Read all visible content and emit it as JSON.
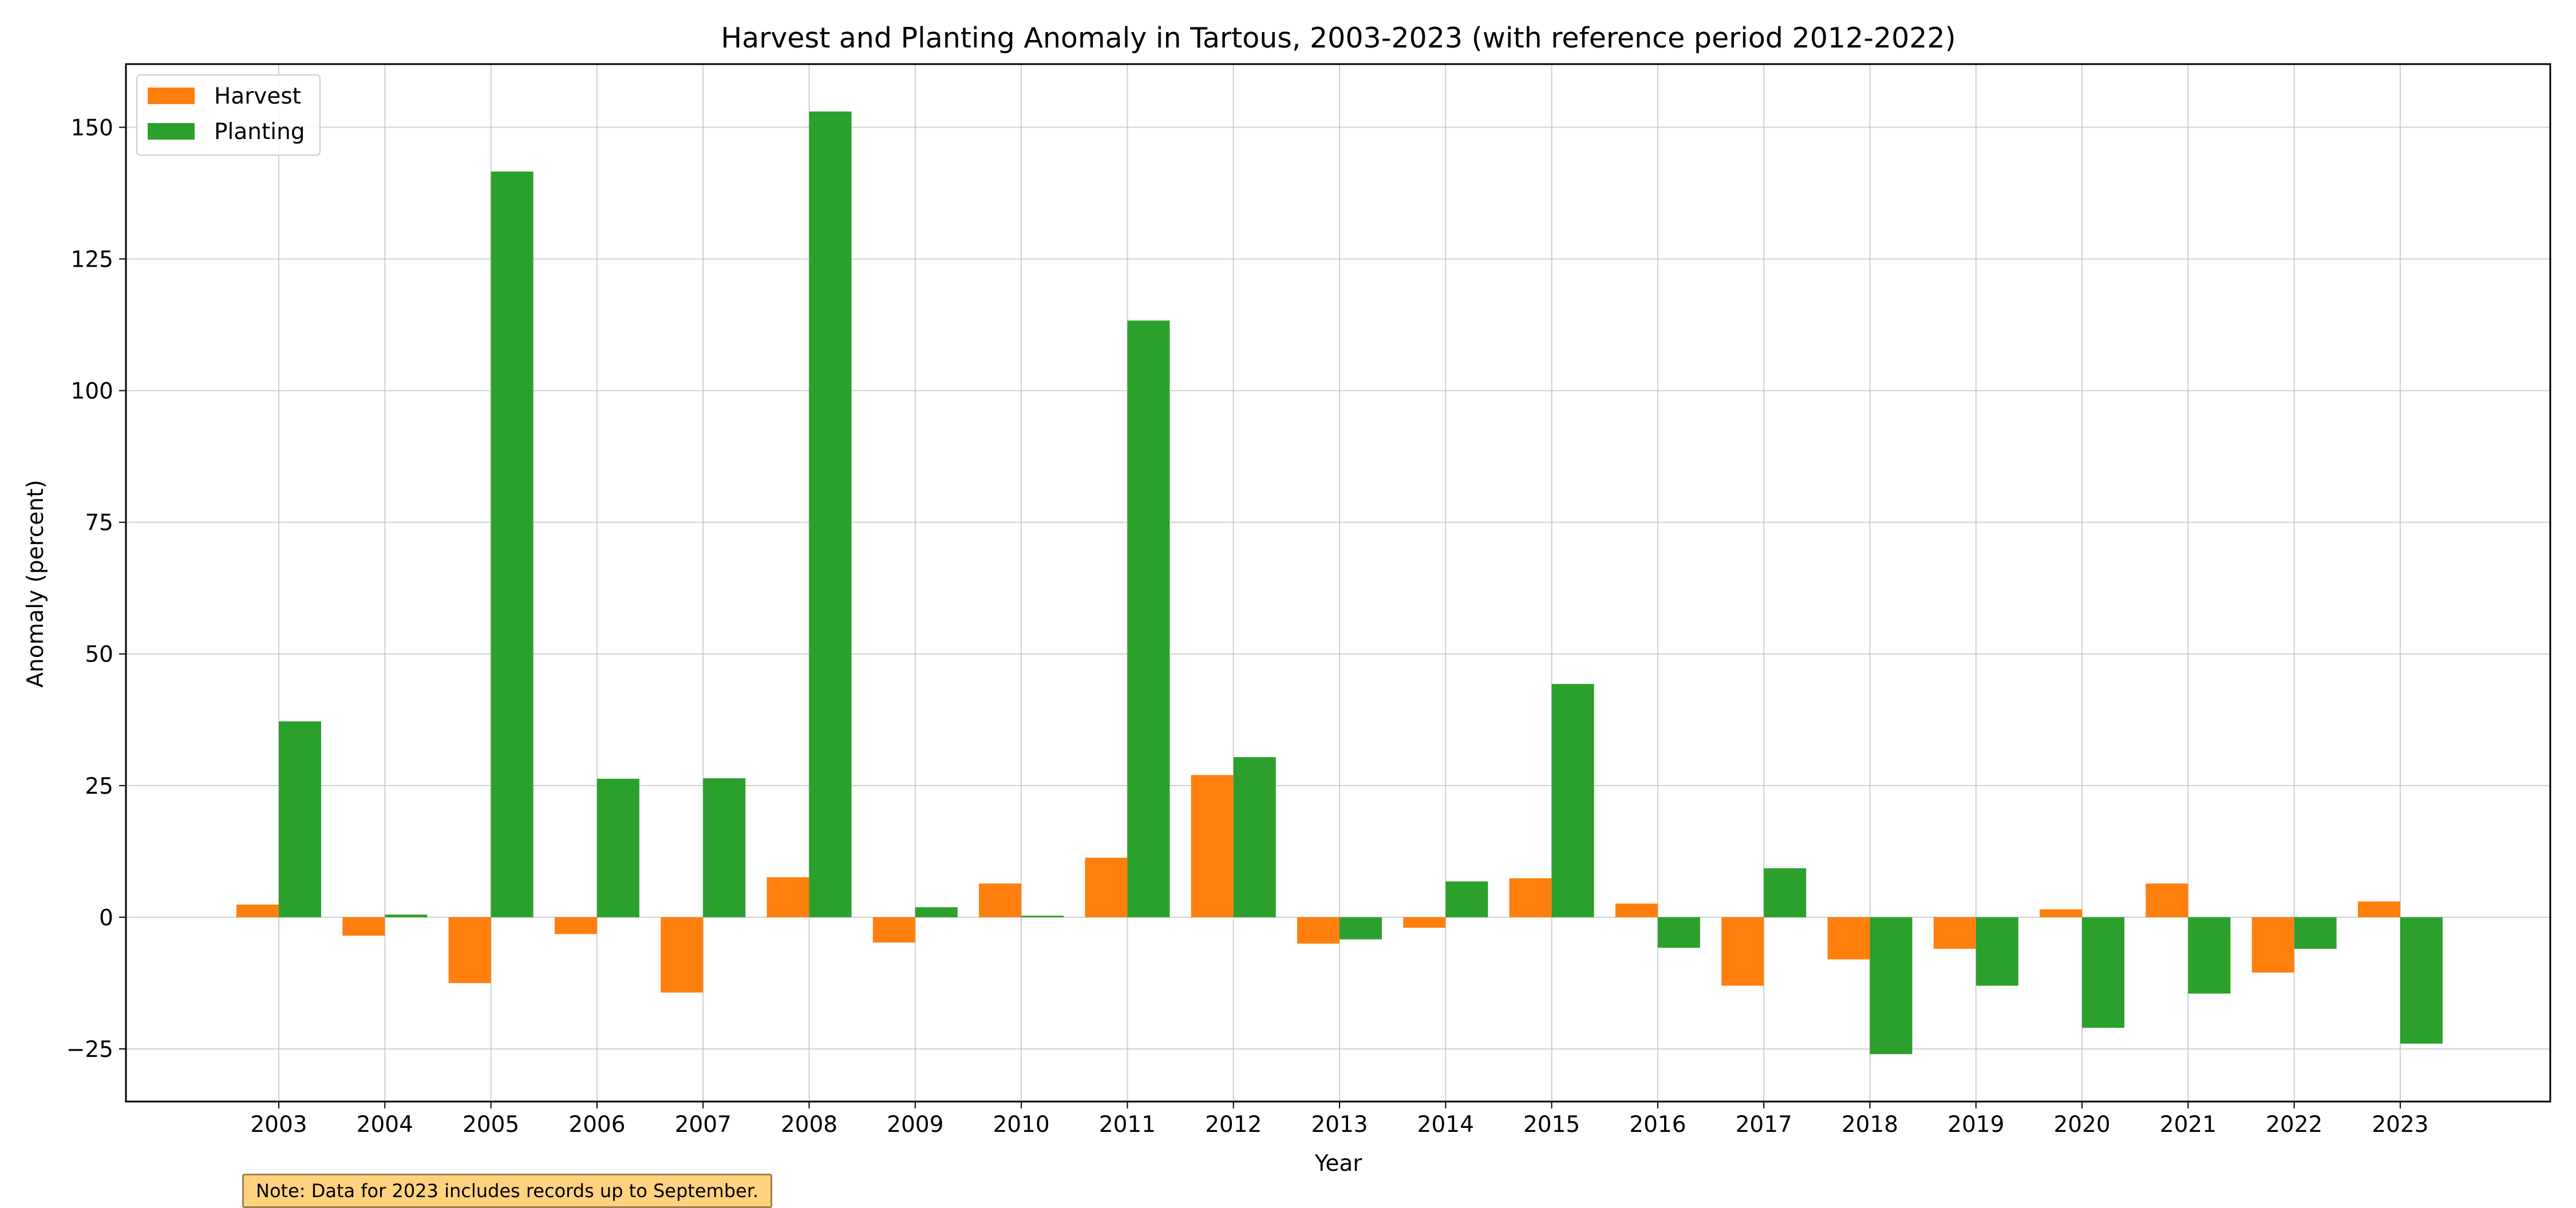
{
  "chart_data": {
    "type": "bar",
    "title": "Harvest and Planting Anomaly in Tartous, 2003-2023 (with reference period 2012-2022)",
    "xlabel": "Year",
    "ylabel": "Anomaly (percent)",
    "categories": [
      "2003",
      "2004",
      "2005",
      "2006",
      "2007",
      "2008",
      "2009",
      "2010",
      "2011",
      "2012",
      "2013",
      "2014",
      "2015",
      "2016",
      "2017",
      "2018",
      "2019",
      "2020",
      "2021",
      "2022",
      "2023"
    ],
    "series": [
      {
        "name": "Harvest",
        "color": "#ff7f0e",
        "values": [
          2.4,
          -3.5,
          -12.5,
          -3.2,
          -14.3,
          7.6,
          -4.8,
          6.4,
          11.3,
          27,
          -5,
          -2,
          7.4,
          2.6,
          -13,
          -8,
          -6,
          1.5,
          6.4,
          -10.5,
          3
        ]
      },
      {
        "name": "Planting",
        "color": "#2ca02c",
        "values": [
          37.2,
          0.5,
          141.6,
          26.3,
          26.4,
          153,
          1.9,
          0.3,
          113.3,
          30.4,
          -4.2,
          6.8,
          44.3,
          -5.8,
          9.3,
          -26,
          -13,
          -21,
          -14.5,
          -6,
          -24
        ]
      }
    ],
    "ylim": [
      -35,
      162
    ],
    "yticks": [
      -25,
      0,
      25,
      50,
      75,
      100,
      125,
      150
    ],
    "grid": true,
    "legend": "top-left"
  },
  "note": "Note: Data for 2023 includes records up to September."
}
